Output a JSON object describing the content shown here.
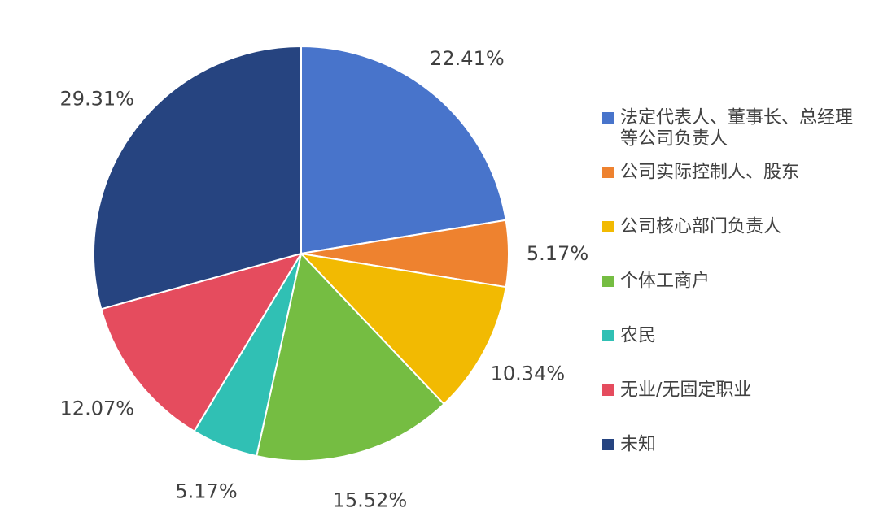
{
  "chart_data": {
    "type": "pie",
    "title": "",
    "start": "12 o'clock",
    "direction": "clockwise",
    "legend_position": "right",
    "slices": [
      {
        "label": "法定代表人、董事长、总经理等公司负责人",
        "legend_lines": [
          "法定代表人、董事长、总经理",
          "等公司负责人"
        ],
        "value": 22.41,
        "value_label": "22.41%",
        "color": "#4874CB"
      },
      {
        "label": "公司实际控制人、股东",
        "legend_lines": [
          "公司实际控制人、股东"
        ],
        "value": 5.17,
        "value_label": "5.17%",
        "color": "#EE822F"
      },
      {
        "label": "公司核心部门负责人",
        "legend_lines": [
          "公司核心部门负责人"
        ],
        "value": 10.34,
        "value_label": "10.34%",
        "color": "#F2BA02"
      },
      {
        "label": "个体工商户",
        "legend_lines": [
          "个体工商户"
        ],
        "value": 15.52,
        "value_label": "15.52%",
        "color": "#75BD42"
      },
      {
        "label": "农民",
        "legend_lines": [
          "农民"
        ],
        "value": 5.17,
        "value_label": "5.17%",
        "color": "#30C0B4"
      },
      {
        "label": "无业/无固定职业",
        "legend_lines": [
          "无业/无固定职业"
        ],
        "value": 12.07,
        "value_label": "12.07%",
        "color": "#E54C5E"
      },
      {
        "label": "未知",
        "legend_lines": [
          "未知"
        ],
        "value": 29.31,
        "value_label": "29.31%",
        "color": "#264480"
      }
    ]
  }
}
